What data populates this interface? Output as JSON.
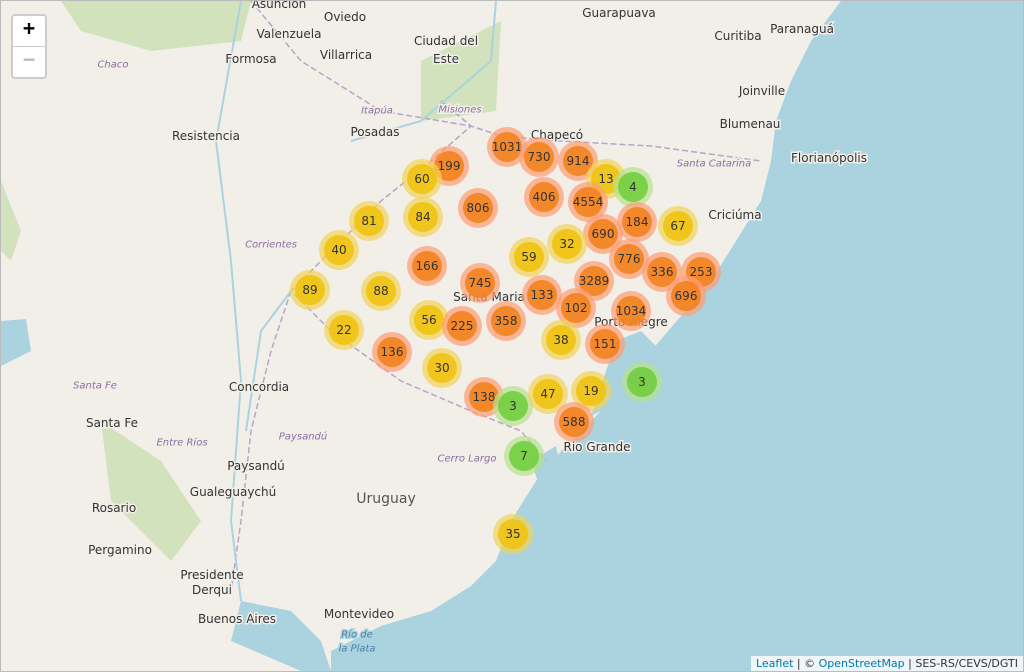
{
  "zoom_control": {
    "zoom_in": "+",
    "zoom_out": "−"
  },
  "places": [
    "Asunción",
    "Oviedo",
    "Guarapuava",
    "Curitiba",
    "Paranaguá",
    "Valenzuela",
    "Ciudad del",
    "Este",
    "Formosa",
    "Chaco",
    "Villarrica",
    "Joinville",
    "Itapúa",
    "Misiones",
    "Blumenau",
    "Resistencia",
    "Posadas",
    "Chapecó",
    "Florianópolis",
    "Santa Catarina",
    "Criciúma",
    "Corrientes",
    "Santa Maria",
    "Porto Alegre",
    "Concordia",
    "Santa Fe",
    "Santa Fe",
    "Entre Ríos",
    "Paysandú",
    "Paysandú",
    "Cerro Largo",
    "Rio Grande",
    "Gualeguaychú",
    "Uruguay",
    "Rosario",
    "Pergamino",
    "Presidente",
    "Derqui",
    "Buenos Aires",
    "Montevideo",
    "Río de",
    "la Plata"
  ],
  "clusters": [
    1031,
    199,
    730,
    914,
    13,
    4,
    60,
    406,
    4554,
    806,
    81,
    84,
    184,
    67,
    690,
    32,
    40,
    59,
    166,
    776,
    3289,
    336,
    253,
    89,
    88,
    745,
    133,
    102,
    1034,
    696,
    56,
    225,
    358,
    22,
    38,
    151,
    136,
    30,
    3,
    138,
    3,
    47,
    19,
    588,
    7,
    35
  ],
  "attribution": {
    "leaflet": "Leaflet",
    "separator": " | © ",
    "osm": "OpenStreetMap",
    "source": " | SES-RS/CEVS/DGTI"
  }
}
